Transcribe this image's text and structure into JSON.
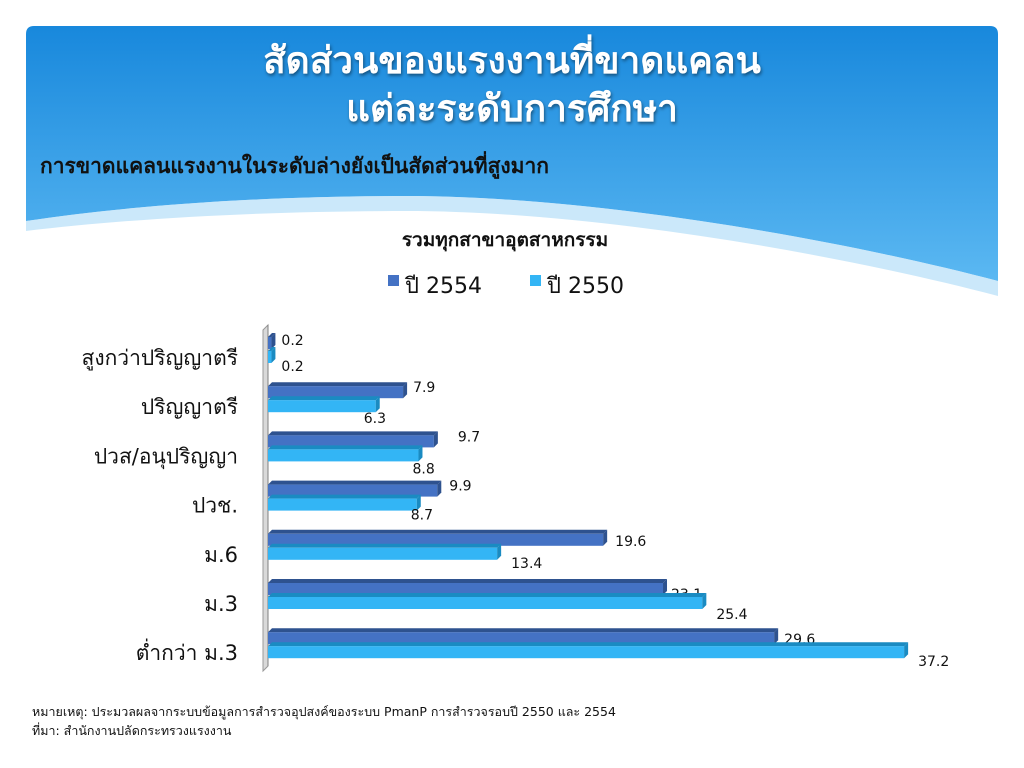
{
  "slide": {
    "title_line1": "สัดส่วนของแรงงานที่ขาดแคลน",
    "title_line2": "แต่ละระดับการศึกษา",
    "subtitle": "การขาดแคลนแรงงานในระดับล่างยังเป็นสัดส่วนที่สูงมาก",
    "note": "หมายเหตุ: ประมวลผลจากระบบข้อมูลการสำรวจอุปสงค์ของระบบ PmanP การสำรวจรอบปี 2550 และ 2554",
    "source": "ที่มา: สำนักงานปลัดกระทรวงแรงงาน"
  },
  "colors": {
    "header_blue": "#1E8FE0",
    "series_2554": "#4472C4",
    "series_2550": "#33B5F5"
  },
  "chart_data": {
    "type": "bar",
    "orientation": "horizontal",
    "title": "รวมทุกสาขาอุตสาหกรรม",
    "categories": [
      "สูงกว่าปริญญาตรี",
      "ปริญญาตรี",
      "ปวส/อนุปริญญา",
      "ปวช.",
      "ม.6",
      "ม.3",
      "ต่ำกว่า ม.3"
    ],
    "series": [
      {
        "name": "ปี 2554",
        "values": [
          0.2,
          7.9,
          9.7,
          9.9,
          19.6,
          23.1,
          29.6
        ]
      },
      {
        "name": "ปี 2550",
        "values": [
          0.2,
          6.3,
          8.8,
          8.7,
          13.4,
          25.4,
          37.2
        ]
      }
    ],
    "legend": "top",
    "grid": false
  }
}
